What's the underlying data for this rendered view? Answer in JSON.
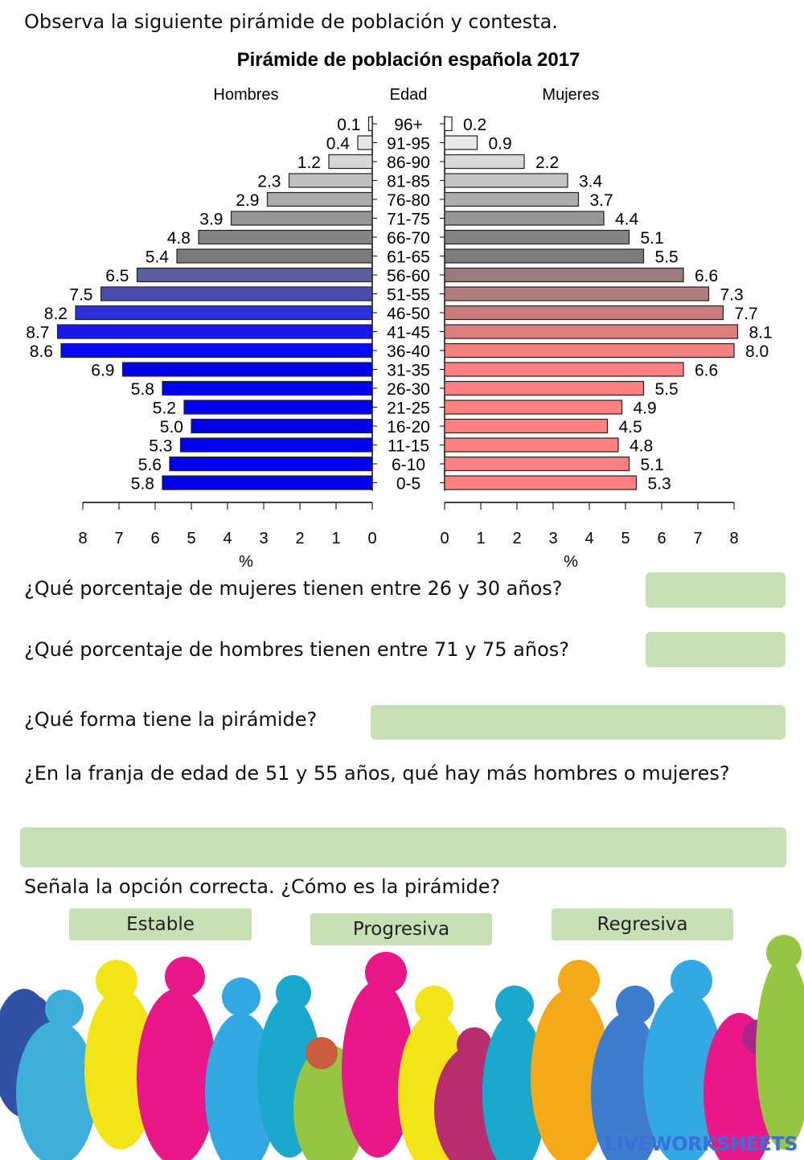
{
  "instruction": "Observa la siguiente pirámide de población y contesta.",
  "chart_data": {
    "type": "bar",
    "orientation": "horizontal-population-pyramid",
    "title": "Pirámide de población española 2017",
    "center_label": "Edad",
    "xlabel_left": "%",
    "xlabel_right": "%",
    "xlim": [
      0,
      8
    ],
    "ticks": [
      0,
      1,
      2,
      3,
      4,
      5,
      6,
      7,
      8
    ],
    "categories": [
      "96+",
      "91-95",
      "86-90",
      "81-85",
      "76-80",
      "71-75",
      "66-70",
      "61-65",
      "56-60",
      "51-55",
      "46-50",
      "41-45",
      "36-40",
      "31-35",
      "26-30",
      "21-25",
      "16-20",
      "11-15",
      "6-10",
      "0-5"
    ],
    "series": [
      {
        "name": "Hombres",
        "side": "left",
        "values": [
          0.1,
          0.4,
          1.2,
          2.3,
          2.9,
          3.9,
          4.8,
          5.4,
          6.5,
          7.5,
          8.2,
          8.7,
          8.6,
          6.9,
          5.8,
          5.2,
          5.0,
          5.3,
          5.6,
          5.8
        ],
        "labels": [
          "0.1",
          "0.4",
          "1.2",
          "2.3",
          "2.9",
          "3.9",
          "4.8",
          "5.4",
          "6.5",
          "7.5",
          "8.2",
          "8.7",
          "8.6",
          "6.9",
          "5.8",
          "5.2",
          "5.0",
          "5.3",
          "5.6",
          "5.8"
        ],
        "colors": [
          "#f8f8f8",
          "#e6e6e6",
          "#d6d6d6",
          "#c0c0c0",
          "#acacac",
          "#969696",
          "#848484",
          "#7a7a7a",
          "#5c5f9c",
          "#4a4cb0",
          "#2e30d8",
          "#1818ea",
          "#0a0af0",
          "#0000f0",
          "#0000f0",
          "#0000f0",
          "#0000f0",
          "#0000f0",
          "#0000f0",
          "#0000f0"
        ]
      },
      {
        "name": "Mujeres",
        "side": "right",
        "values": [
          0.2,
          0.9,
          2.2,
          3.4,
          3.7,
          4.4,
          5.1,
          5.5,
          6.6,
          7.3,
          7.7,
          8.1,
          8.0,
          6.6,
          5.5,
          4.9,
          4.5,
          4.8,
          5.1,
          5.3
        ],
        "labels": [
          "0.2",
          "0.9",
          "2.2",
          "3.4",
          "3.7",
          "4.4",
          "5.1",
          "5.5",
          "6.6",
          "7.3",
          "7.7",
          "8.1",
          "8.0",
          "6.6",
          "5.5",
          "4.9",
          "4.5",
          "4.8",
          "5.1",
          "5.3"
        ],
        "colors": [
          "#ffffff",
          "#e8e8e8",
          "#d8d8d8",
          "#c4c4c4",
          "#acacac",
          "#969696",
          "#848484",
          "#7c7c7c",
          "#9a7a7a",
          "#b07c7c",
          "#c87c7c",
          "#de7e7e",
          "#f58080",
          "#ff8080",
          "#ff8080",
          "#ff8080",
          "#ff8080",
          "#ff8080",
          "#ff8080",
          "#ff8080"
        ]
      }
    ],
    "grid": false
  },
  "questions": [
    {
      "text": "¿Qué porcentaje de mujeres tienen entre 26 y 30 años?",
      "answer": ""
    },
    {
      "text": "¿Qué porcentaje de hombres tienen entre 71 y 75 años?",
      "answer": ""
    },
    {
      "text": "¿Qué forma tiene la pirámide?",
      "answer": ""
    },
    {
      "text": "¿En la franja de edad de 51 y 55 años, qué hay más hombres o mujeres?",
      "answer": ""
    }
  ],
  "choice": {
    "prompt": "Señala la opción correcta. ¿Cómo es la pirámide?",
    "options": [
      "Estable",
      "Progresiva",
      "Regresiva"
    ]
  },
  "answer_box_color": "#c7e0b5",
  "logo": "LIVEWORKSHEETS"
}
